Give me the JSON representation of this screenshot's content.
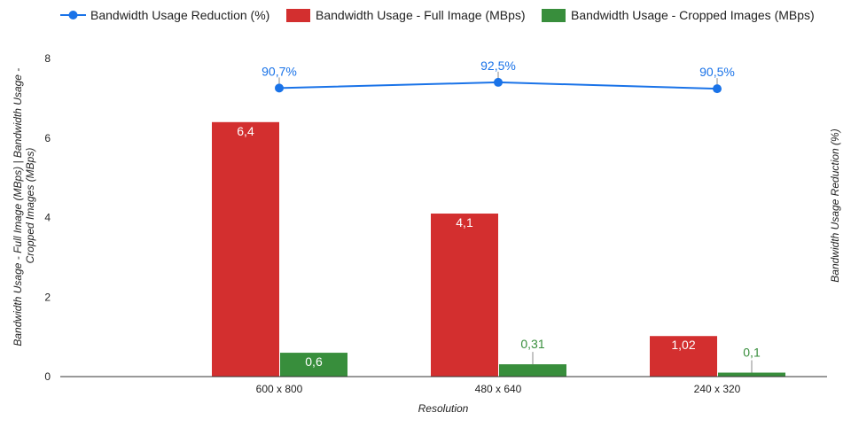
{
  "chart_data": {
    "type": "bar",
    "xlabel": "Resolution",
    "ylabel_left": "Bandwidth Usage - Full Image (MBps) | Bandwidth Usage - Cropped Images (MBps)",
    "ylabel_right": "Bandwidth Usage Reduction (%)",
    "categories": [
      "600 x 800",
      "480 x 640",
      "240 x 320"
    ],
    "ylim": [
      0,
      8
    ],
    "yticks": [
      "0",
      "2",
      "4",
      "6",
      "8"
    ],
    "line_ylim": [
      0,
      100
    ],
    "legend_position": "top",
    "series": [
      {
        "name": "Bandwidth Usage Reduction (%)",
        "kind": "line",
        "axis": "right",
        "values": [
          90.7,
          92.5,
          90.5
        ],
        "labels": [
          "90,7%",
          "92,5%",
          "90,5%"
        ],
        "color": "#1a73e8"
      },
      {
        "name": "Bandwidth Usage - Full Image (MBps)",
        "kind": "bar",
        "axis": "left",
        "values": [
          6.4,
          4.1,
          1.02
        ],
        "labels": [
          "6,4",
          "4,1",
          "1,02"
        ],
        "color": "#d32f2f"
      },
      {
        "name": "Bandwidth Usage - Cropped Images (MBps)",
        "kind": "bar",
        "axis": "left",
        "values": [
          0.6,
          0.31,
          0.1
        ],
        "labels": [
          "0,6",
          "0,31",
          "0,1"
        ],
        "color": "#388e3c"
      }
    ]
  }
}
